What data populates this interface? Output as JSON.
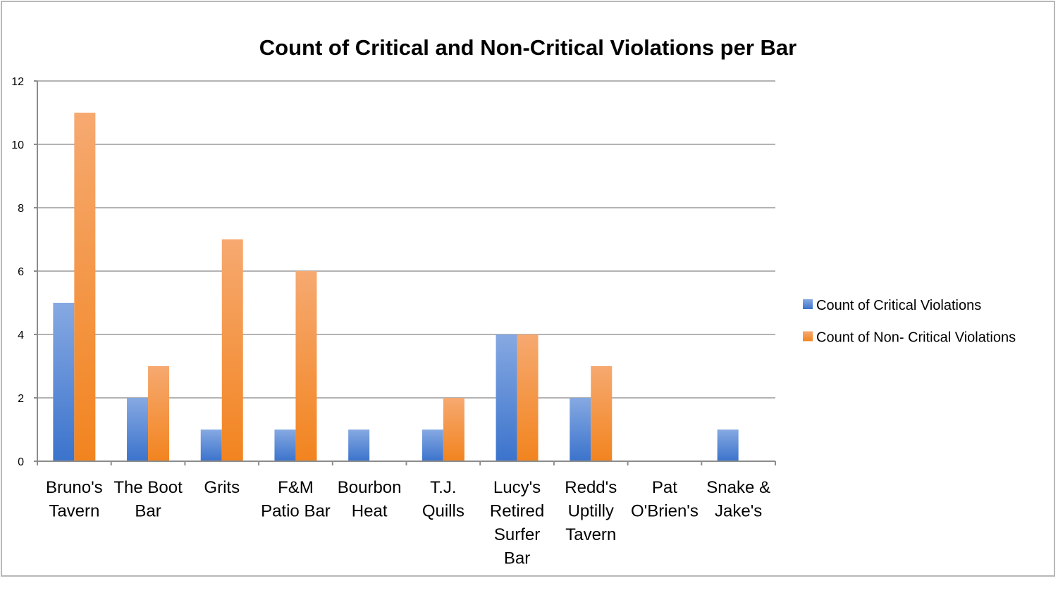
{
  "chart_data": {
    "type": "bar",
    "title": "Count of Critical and Non-Critical Violations per Bar",
    "categories": [
      [
        "Bruno's",
        "Tavern"
      ],
      [
        "The Boot",
        "Bar"
      ],
      [
        "Grits"
      ],
      [
        "F&M",
        "Patio Bar"
      ],
      [
        "Bourbon",
        "Heat"
      ],
      [
        "T.J.",
        "Quills"
      ],
      [
        "Lucy's",
        "Retired",
        "Surfer",
        "Bar"
      ],
      [
        "Redd's",
        "Uptilly",
        "Tavern"
      ],
      [
        "Pat",
        "O'Brien's"
      ],
      [
        "Snake &",
        "Jake's"
      ]
    ],
    "series": [
      {
        "name": "Count of Critical Violations",
        "values": [
          5,
          2,
          1,
          1,
          1,
          1,
          4,
          2,
          0,
          1
        ],
        "color": "#4a7ed1"
      },
      {
        "name": "Count of Non- Critical Violations",
        "values": [
          11,
          3,
          7,
          6,
          0,
          2,
          4,
          3,
          0,
          0
        ],
        "color": "#f58a2e"
      }
    ],
    "ylim": [
      0,
      12
    ],
    "yticks": [
      0,
      2,
      4,
      6,
      8,
      10,
      12
    ],
    "grid": true,
    "legend": "right",
    "xlabel": "",
    "ylabel": ""
  }
}
